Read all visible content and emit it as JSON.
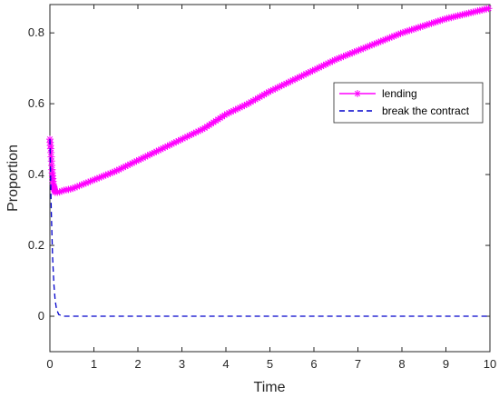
{
  "chart_data": {
    "type": "line",
    "title": "",
    "xlabel": "Time",
    "ylabel": "Proportion",
    "xlim": [
      0,
      10
    ],
    "ylim": [
      -0.1,
      0.88
    ],
    "xticks": [
      "0",
      "1",
      "2",
      "3",
      "4",
      "5",
      "6",
      "7",
      "8",
      "9",
      "10"
    ],
    "yticks": [
      "0",
      "0.2",
      "0.4",
      "0.6",
      "0.8"
    ],
    "grid": false,
    "legend_position": "top-right",
    "series": [
      {
        "name": "lending",
        "color": "#ff00ff",
        "marker": "asterisk",
        "line_style": "solid",
        "x": [
          0,
          0.02,
          0.05,
          0.08,
          0.12,
          0.2,
          0.3,
          0.5,
          1,
          1.5,
          2,
          2.5,
          3,
          3.5,
          4,
          4.5,
          5,
          5.5,
          6,
          6.5,
          7,
          7.5,
          8,
          8.5,
          9,
          9.5,
          10
        ],
        "y": [
          0.5,
          0.47,
          0.41,
          0.37,
          0.35,
          0.35,
          0.355,
          0.36,
          0.385,
          0.41,
          0.44,
          0.47,
          0.5,
          0.53,
          0.57,
          0.6,
          0.635,
          0.665,
          0.695,
          0.725,
          0.75,
          0.775,
          0.8,
          0.82,
          0.84,
          0.855,
          0.87
        ]
      },
      {
        "name": "break the contract",
        "color": "#0000cc",
        "marker": "none",
        "line_style": "dashed",
        "x": [
          0,
          0.03,
          0.06,
          0.09,
          0.12,
          0.15,
          0.2,
          0.3,
          0.5,
          1,
          10
        ],
        "y": [
          0.5,
          0.3,
          0.17,
          0.09,
          0.045,
          0.02,
          0.005,
          0.0,
          0.0,
          0.0,
          0.0
        ]
      }
    ]
  }
}
